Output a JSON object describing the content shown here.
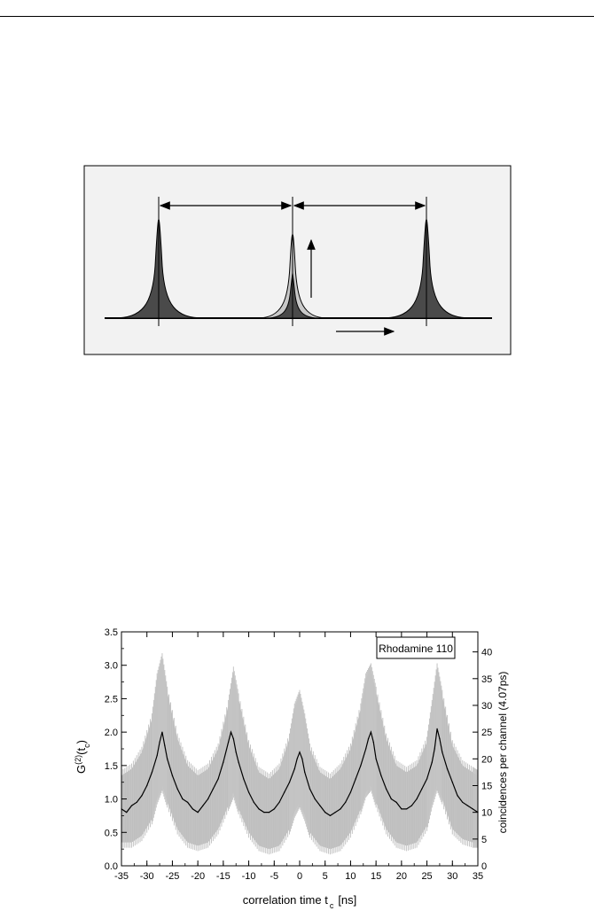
{
  "chart_data": {
    "type": "line",
    "xlabel": "correlation time t",
    "xlabel_subscript": "c",
    "xlabel_unit": "[ns]",
    "ylabel_left": "G",
    "ylabel_left_superscript": "(2)",
    "ylabel_left_tail": "(t",
    "ylabel_left_subscript": "c",
    "ylabel_left_close": ")",
    "ylabel_right": "coincidences per channel (4.07ps)",
    "xlim": [
      -35,
      35
    ],
    "ylim_left": [
      0,
      3.5
    ],
    "ylim_right": [
      0,
      43.75
    ],
    "x_ticks": [
      "-35",
      "-30",
      "-25",
      "-20",
      "-15",
      "-10",
      "-5",
      "0",
      "5",
      "10",
      "15",
      "20",
      "25",
      "30",
      "35"
    ],
    "y_left_ticks": [
      "0.0",
      "0.5",
      "1.0",
      "1.5",
      "2.0",
      "2.5",
      "3.0",
      "3.5"
    ],
    "y_right_ticks": [
      "0",
      "5",
      "10",
      "15",
      "20",
      "25",
      "30",
      "35",
      "40"
    ],
    "annotation": "Rhodamine 110",
    "series": [
      {
        "color": "#bdbdbd",
        "x": [
          -35,
          -33,
          -31,
          -29,
          -28,
          -27,
          -26,
          -24,
          -22,
          -20,
          -18,
          -16,
          -14,
          -13,
          -12,
          -10,
          -8,
          -6,
          -4,
          -2,
          -1,
          0,
          1,
          2,
          4,
          6,
          8,
          10,
          12,
          13,
          14,
          15,
          17,
          19,
          21,
          23,
          25,
          26,
          27,
          28,
          30,
          32,
          34,
          35
        ],
        "lower": [
          0.35,
          0.35,
          0.45,
          0.7,
          1.0,
          1.2,
          0.95,
          0.55,
          0.35,
          0.3,
          0.35,
          0.55,
          0.9,
          1.1,
          0.85,
          0.5,
          0.3,
          0.25,
          0.3,
          0.55,
          0.8,
          0.95,
          0.75,
          0.5,
          0.3,
          0.25,
          0.3,
          0.5,
          0.85,
          1.1,
          1.2,
          0.95,
          0.55,
          0.35,
          0.3,
          0.35,
          0.6,
          0.95,
          1.2,
          1.0,
          0.55,
          0.4,
          0.35,
          0.35
        ],
        "upper": [
          1.35,
          1.45,
          1.7,
          2.2,
          2.8,
          3.1,
          2.6,
          1.9,
          1.5,
          1.35,
          1.45,
          1.75,
          2.4,
          2.9,
          2.5,
          1.8,
          1.4,
          1.3,
          1.45,
          1.9,
          2.35,
          2.55,
          2.2,
          1.75,
          1.4,
          1.3,
          1.45,
          1.75,
          2.35,
          2.8,
          2.95,
          2.6,
          1.9,
          1.5,
          1.4,
          1.5,
          1.85,
          2.4,
          2.95,
          2.55,
          1.8,
          1.5,
          1.4,
          1.35
        ]
      },
      {
        "color": "#000000",
        "x": [
          -35,
          -34,
          -33,
          -32,
          -31,
          -30,
          -29,
          -28,
          -27.5,
          -27,
          -26.5,
          -26,
          -25,
          -24,
          -23,
          -22,
          -21,
          -20,
          -19,
          -18,
          -17,
          -16,
          -15,
          -14,
          -13.5,
          -13,
          -12.5,
          -12,
          -11,
          -10,
          -9,
          -8,
          -7,
          -6,
          -5,
          -4,
          -3,
          -2,
          -1,
          -0.5,
          0,
          0.5,
          1,
          2,
          3,
          4,
          5,
          6,
          7,
          8,
          9,
          10,
          11,
          12,
          13,
          13.5,
          14,
          14.5,
          15,
          16,
          17,
          18,
          19,
          20,
          21,
          22,
          23,
          24,
          25,
          26,
          26.5,
          27,
          27.5,
          28,
          29,
          30,
          31,
          32,
          33,
          34,
          35
        ],
        "y": [
          0.85,
          0.8,
          0.9,
          0.95,
          1.05,
          1.2,
          1.4,
          1.65,
          1.85,
          2.0,
          1.8,
          1.6,
          1.35,
          1.15,
          1.0,
          0.95,
          0.85,
          0.8,
          0.9,
          1.0,
          1.15,
          1.3,
          1.55,
          1.85,
          2.0,
          1.9,
          1.7,
          1.55,
          1.3,
          1.1,
          0.95,
          0.85,
          0.8,
          0.8,
          0.85,
          0.95,
          1.1,
          1.25,
          1.45,
          1.6,
          1.7,
          1.6,
          1.4,
          1.15,
          1.0,
          0.9,
          0.8,
          0.75,
          0.8,
          0.85,
          0.95,
          1.1,
          1.3,
          1.5,
          1.75,
          1.9,
          2.0,
          1.85,
          1.6,
          1.35,
          1.15,
          1.0,
          0.95,
          0.85,
          0.85,
          0.9,
          1.0,
          1.15,
          1.3,
          1.55,
          1.75,
          2.05,
          1.9,
          1.7,
          1.45,
          1.25,
          1.05,
          0.95,
          0.9,
          0.85,
          0.8
        ]
      }
    ]
  }
}
